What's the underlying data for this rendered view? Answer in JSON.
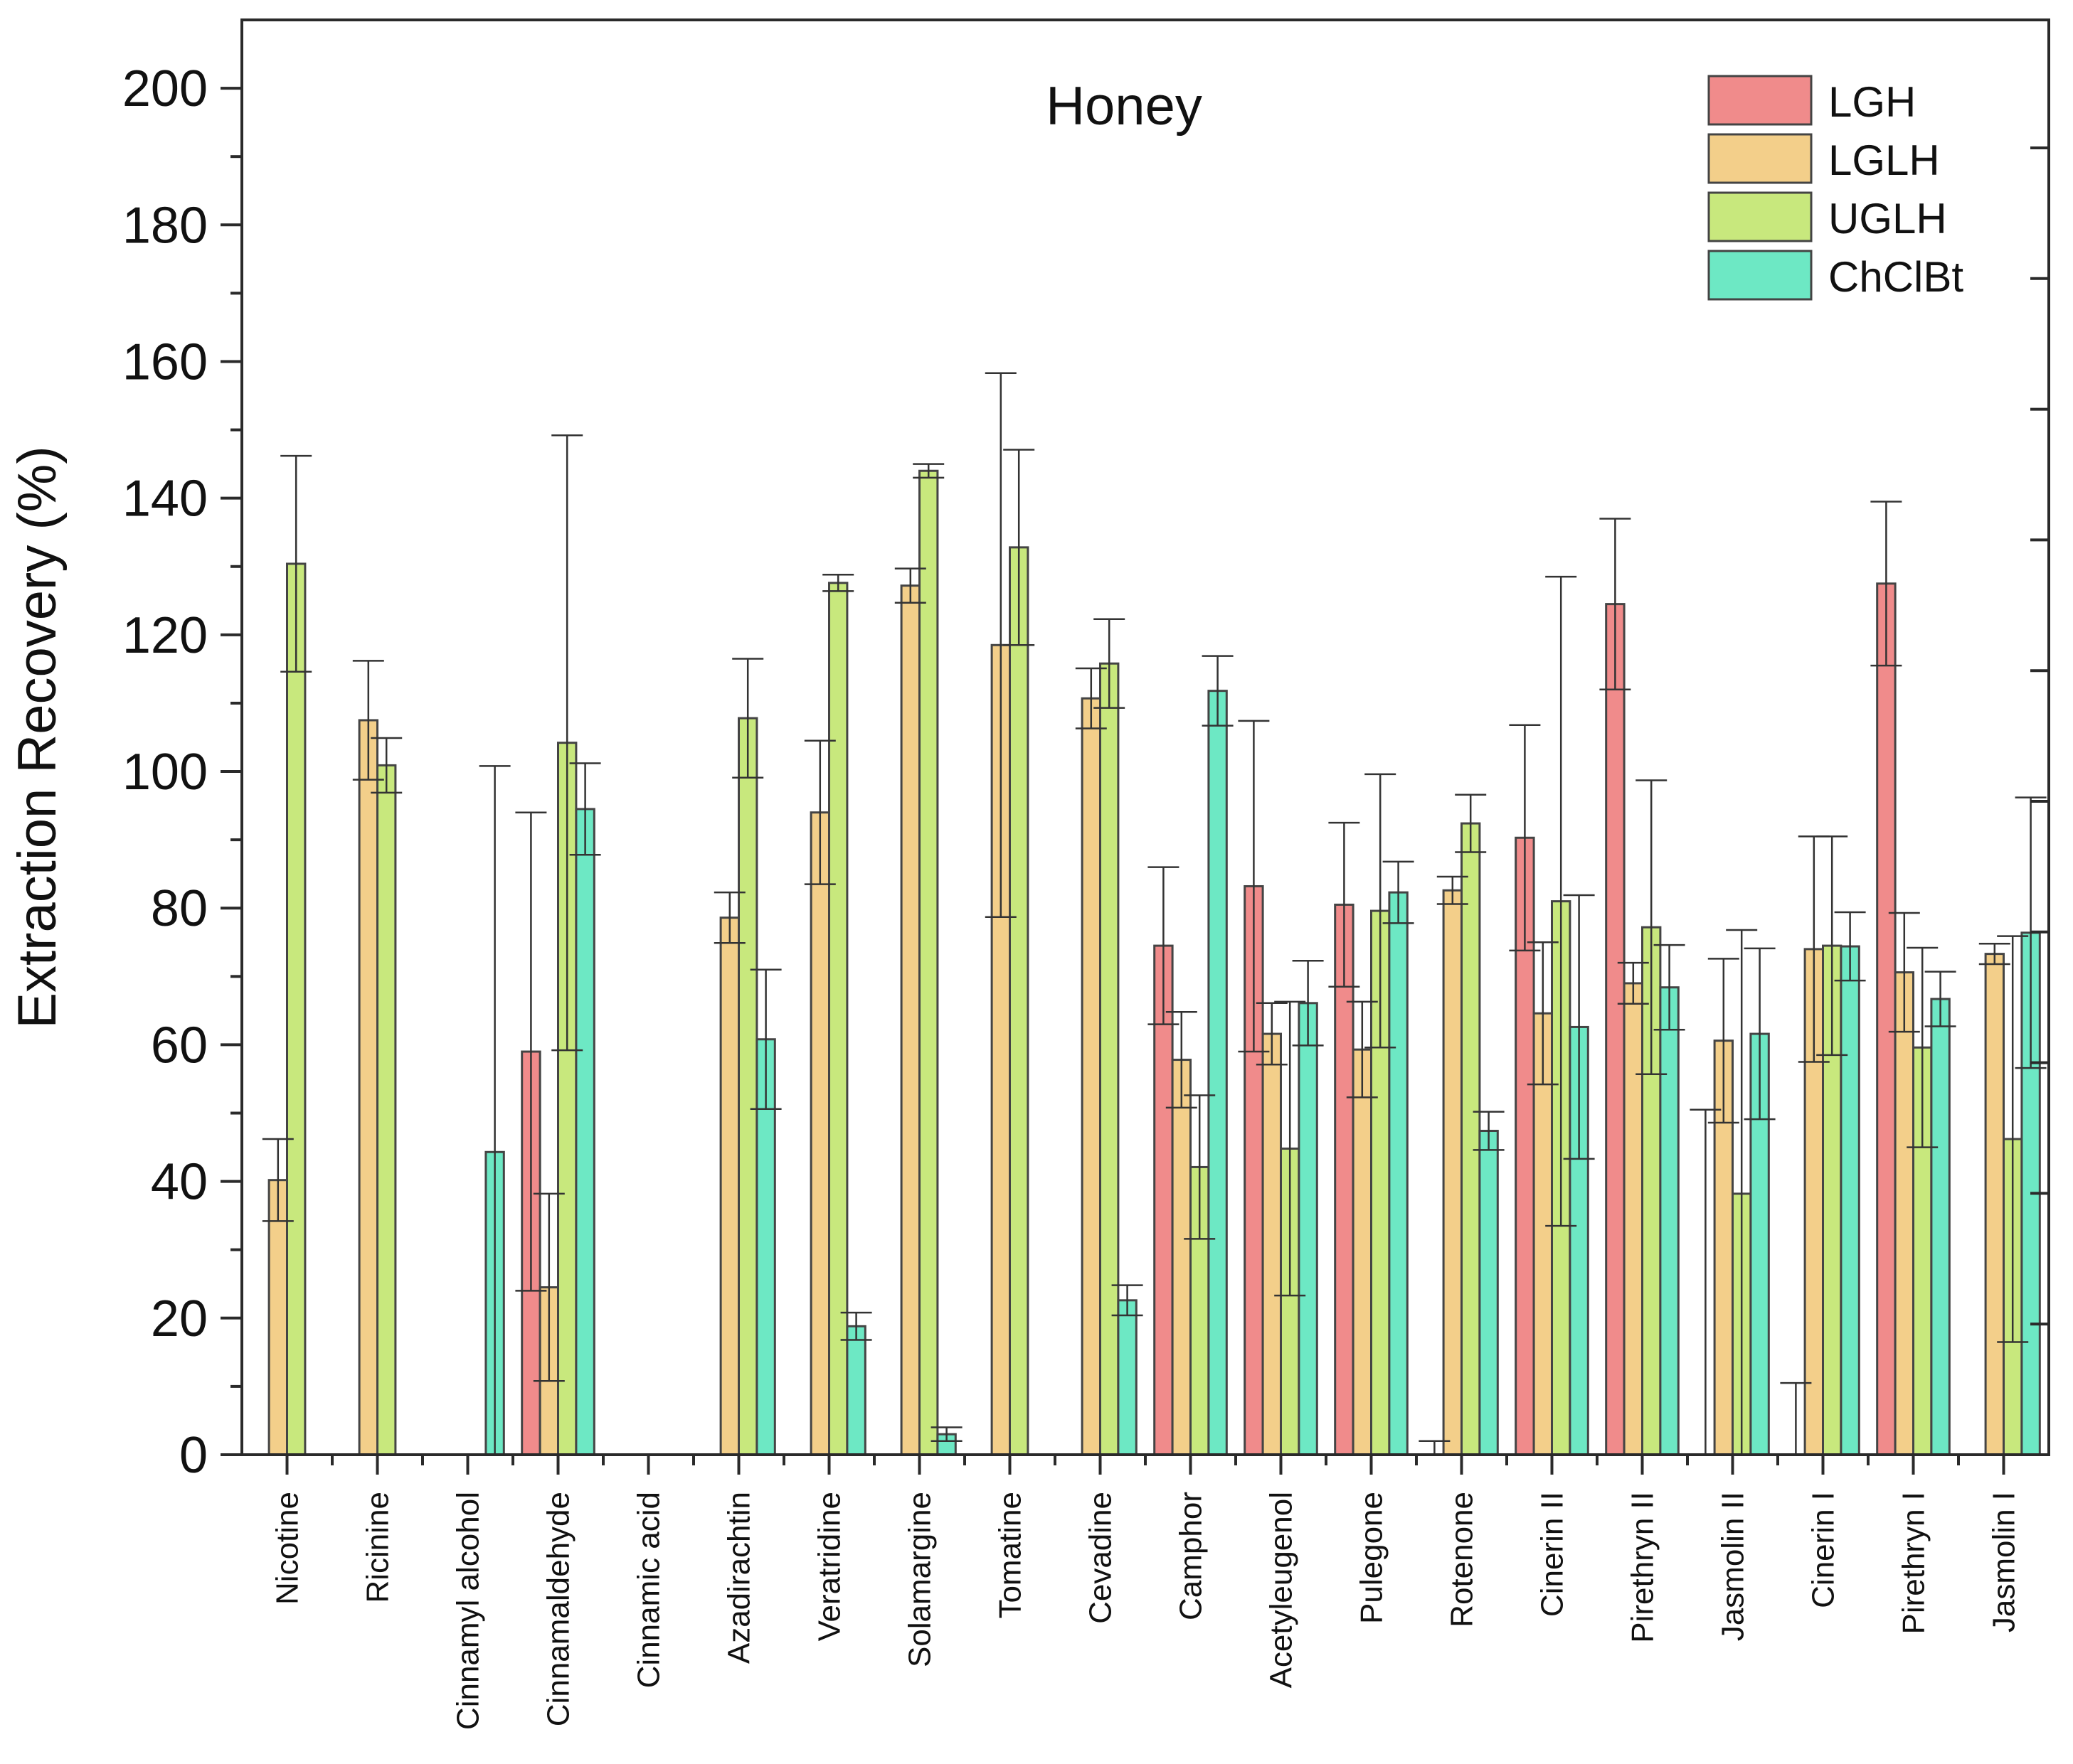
{
  "chart_data": {
    "type": "bar",
    "title": "Honey",
    "xlabel": "",
    "ylabel": "Extraction Recovery (%)",
    "ylim": [
      0,
      210
    ],
    "yticks": [
      0,
      20,
      40,
      60,
      80,
      100,
      120,
      140,
      160,
      180,
      200
    ],
    "legend_position": "top-right",
    "categories": [
      "Nicotine",
      "Ricinine",
      "Cinnamyl alcohol",
      "Cinnamaldehyde",
      "Cinnamic acid",
      "Azadirachtin",
      "Veratridine",
      "Solamargine",
      "Tomatine",
      "Cevadine",
      "Camphor",
      "Acetyleugenol",
      "Pulegone",
      "Rotenone",
      "Cinerin II",
      "Pirethryn II",
      "Jasmolin II",
      "Cinerin I",
      "Pirethryn I",
      "Jasmolin I"
    ],
    "series": [
      {
        "name": "LGH",
        "color": "#f08b8b",
        "values": [
          0,
          0,
          0,
          59,
          0,
          0,
          0,
          0,
          0,
          0,
          74.5,
          83.2,
          80.5,
          0,
          90.3,
          124.5,
          0,
          0,
          127.5,
          0
        ],
        "errors": [
          0,
          0,
          0,
          35,
          0,
          0,
          0,
          0,
          0,
          0,
          11.5,
          24.2,
          12,
          2,
          16.5,
          12.5,
          50.5,
          10.5,
          12,
          0
        ]
      },
      {
        "name": "LGLH",
        "color": "#f3cf8a",
        "values": [
          40.2,
          107.5,
          0,
          24.5,
          0,
          78.6,
          94,
          127.2,
          118.5,
          110.7,
          57.8,
          61.6,
          59.3,
          82.6,
          64.6,
          69,
          60.6,
          74,
          70.6,
          73.3
        ],
        "errors": [
          6,
          8.7,
          0,
          13.7,
          0,
          3.7,
          10.5,
          2.5,
          39.8,
          4.4,
          7,
          4.5,
          7,
          2,
          10.4,
          3,
          12,
          16.5,
          8.7,
          1.5
        ]
      },
      {
        "name": "UGLH",
        "color": "#c8e87d",
        "values": [
          130.4,
          100.9,
          0,
          104.2,
          0,
          107.8,
          127.6,
          144,
          132.8,
          115.8,
          42.1,
          44.8,
          79.6,
          92.4,
          81,
          77.2,
          38.2,
          74.5,
          59.6,
          46.2
        ],
        "errors": [
          15.8,
          4,
          0,
          45,
          0,
          8.7,
          1.2,
          1,
          14.3,
          6.5,
          10.5,
          21.5,
          20,
          4.2,
          47.5,
          21.5,
          38.6,
          16,
          14.6,
          29.7
        ]
      },
      {
        "name": "ChClBt",
        "color": "#6de8c4",
        "values": [
          0,
          0,
          44.3,
          94.5,
          0,
          60.8,
          18.8,
          3,
          0,
          22.6,
          111.8,
          66.1,
          82.3,
          47.4,
          62.6,
          68.4,
          61.6,
          74.4,
          66.7,
          76.4
        ],
        "errors": [
          0,
          0,
          56.5,
          6.7,
          0,
          10.2,
          2,
          1,
          0,
          2.2,
          5.1,
          6.2,
          4.5,
          2.8,
          19.3,
          6.2,
          12.5,
          5,
          4,
          19.8
        ]
      }
    ]
  }
}
